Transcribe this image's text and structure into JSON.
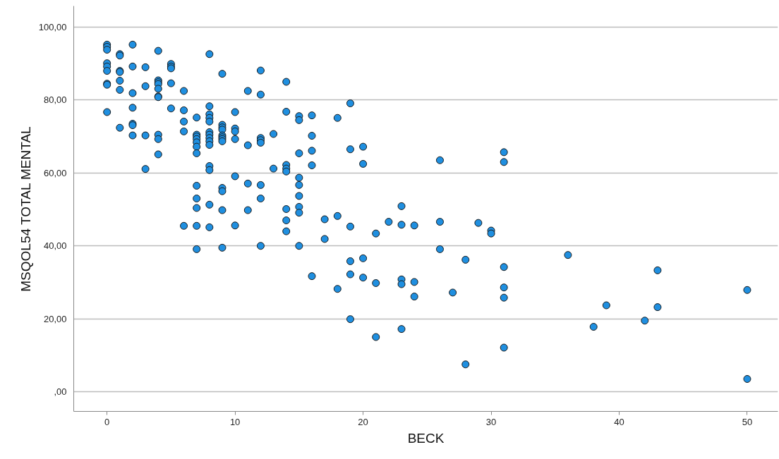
{
  "chart_data": {
    "type": "scatter",
    "xlabel": "BECK",
    "ylabel": "MSQOL54 TOTAL MENTAL",
    "marker": "circle",
    "grid": "y",
    "xlim": [
      -2.6,
      52.4
    ],
    "ylim": [
      -5.4,
      105.8
    ],
    "xticks": [
      0,
      10,
      20,
      30,
      40,
      50
    ],
    "yticks": [
      {
        "value": 0,
        "label": ",00"
      },
      {
        "value": 20,
        "label": "20,00"
      },
      {
        "value": 40,
        "label": "40,00"
      },
      {
        "value": 60,
        "label": "60,00"
      },
      {
        "value": 80,
        "label": "80,00"
      },
      {
        "value": 100,
        "label": "100,00"
      }
    ],
    "series": [
      {
        "color": "#1f8fe0",
        "x": [
          0,
          0,
          0,
          0,
          0,
          0,
          0,
          0,
          0,
          1,
          1,
          1,
          1,
          1,
          1,
          1,
          2,
          2,
          2,
          2,
          2,
          2,
          2,
          3,
          3,
          3,
          3,
          4,
          4,
          4,
          4,
          4,
          4,
          4,
          4,
          4,
          4,
          5,
          5,
          5,
          5,
          5,
          6,
          6,
          6,
          6,
          6,
          7,
          7,
          7,
          7,
          7,
          7,
          7,
          7,
          7,
          7,
          7,
          7,
          8,
          8,
          8,
          8,
          8,
          8,
          8,
          8,
          8,
          8,
          8,
          8,
          8,
          8,
          9,
          9,
          9,
          9,
          9,
          9,
          9,
          9,
          9,
          9,
          9,
          9,
          10,
          10,
          10,
          10,
          10,
          10,
          11,
          11,
          11,
          11,
          12,
          12,
          12,
          12,
          12,
          12,
          12,
          12,
          13,
          13,
          14,
          14,
          14,
          14,
          14,
          14,
          14,
          14,
          15,
          15,
          15,
          15,
          15,
          15,
          15,
          15,
          15,
          16,
          16,
          16,
          16,
          16,
          17,
          17,
          18,
          18,
          18,
          19,
          19,
          19,
          19,
          19,
          19,
          20,
          20,
          20,
          20,
          21,
          21,
          21,
          22,
          23,
          23,
          23,
          23,
          23,
          24,
          24,
          24,
          26,
          26,
          26,
          27,
          28,
          28,
          29,
          30,
          30,
          31,
          31,
          31,
          31,
          31,
          31,
          36,
          38,
          39,
          42,
          43,
          43,
          50,
          50
        ],
        "values": [
          95.2,
          94.6,
          93.8,
          90.1,
          89.2,
          88.0,
          84.5,
          84.2,
          76.7,
          92.6,
          92.2,
          88.0,
          87.7,
          85.3,
          82.8,
          72.4,
          95.2,
          89.2,
          81.9,
          77.9,
          73.5,
          73.1,
          70.3,
          89.0,
          83.8,
          70.3,
          61.1,
          93.5,
          85.4,
          84.9,
          84.4,
          83.1,
          81.0,
          80.8,
          70.5,
          69.3,
          65.1,
          89.9,
          89.2,
          88.7,
          84.6,
          77.7,
          82.5,
          77.2,
          74.1,
          71.4,
          45.5,
          75.2,
          70.5,
          70.0,
          69.3,
          68.4,
          67.2,
          65.4,
          56.5,
          53.0,
          50.4,
          45.5,
          39.1,
          92.6,
          78.3,
          76.1,
          75.1,
          74.1,
          71.2,
          70.5,
          69.6,
          68.7,
          67.7,
          61.9,
          60.8,
          51.3,
          45.1,
          87.2,
          73.2,
          72.5,
          71.9,
          70.3,
          69.8,
          69.3,
          68.7,
          55.9,
          55.0,
          49.8,
          39.5,
          76.7,
          72.2,
          71.4,
          69.3,
          59.1,
          45.6,
          82.5,
          67.6,
          57.1,
          49.8,
          88.1,
          81.5,
          69.6,
          69.0,
          68.3,
          56.7,
          53.0,
          40.0,
          70.7,
          61.2,
          85.0,
          76.8,
          62.2,
          61.2,
          60.4,
          50.1,
          47.0,
          44.0,
          75.6,
          74.5,
          65.4,
          58.7,
          56.7,
          53.7,
          50.7,
          49.1,
          40.0,
          75.8,
          70.2,
          66.1,
          62.1,
          31.7,
          47.3,
          41.9,
          75.1,
          48.2,
          28.2,
          79.1,
          66.5,
          45.3,
          35.8,
          32.2,
          19.9,
          67.2,
          62.5,
          36.6,
          31.3,
          43.4,
          29.8,
          15.0,
          46.6,
          50.9,
          45.8,
          30.8,
          29.5,
          17.2,
          45.6,
          30.1,
          26.1,
          63.5,
          46.6,
          39.1,
          27.2,
          36.2,
          7.5,
          46.3,
          44.2,
          43.4,
          65.7,
          63.0,
          34.2,
          28.6,
          25.8,
          12.1,
          37.5,
          17.8,
          23.7,
          19.5,
          33.3,
          23.2,
          27.9,
          3.5
        ]
      }
    ]
  }
}
